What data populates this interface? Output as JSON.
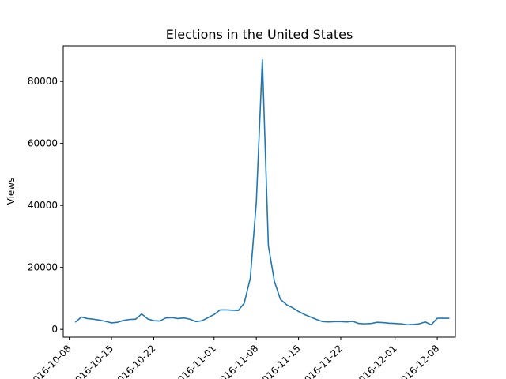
{
  "chart_data": {
    "type": "line",
    "title": "Elections in the United States",
    "xlabel": "",
    "ylabel": "Views",
    "x_type": "date",
    "xlim": [
      "2016-10-07",
      "2016-12-11"
    ],
    "ylim": [
      -2500,
      91500
    ],
    "xticks": [
      "2016-10-08",
      "2016-10-15",
      "2016-10-22",
      "2016-11-01",
      "2016-11-08",
      "2016-11-15",
      "2016-11-22",
      "2016-12-01",
      "2016-12-08"
    ],
    "yticks": [
      0,
      20000,
      40000,
      60000,
      80000
    ],
    "ytick_labels": [
      "0",
      "20000",
      "40000",
      "60000",
      "80000"
    ],
    "grid": false,
    "color": "#1f77b4",
    "series": [
      {
        "x": [
          "2016-10-09",
          "2016-10-10",
          "2016-10-11",
          "2016-10-12",
          "2016-10-13",
          "2016-10-14",
          "2016-10-15",
          "2016-10-16",
          "2016-10-17",
          "2016-10-18",
          "2016-10-19",
          "2016-10-20",
          "2016-10-21",
          "2016-10-22",
          "2016-10-23",
          "2016-10-24",
          "2016-10-25",
          "2016-10-26",
          "2016-10-27",
          "2016-10-28",
          "2016-10-29",
          "2016-10-30",
          "2016-10-31",
          "2016-11-01",
          "2016-11-02",
          "2016-11-03",
          "2016-11-04",
          "2016-11-05",
          "2016-11-06",
          "2016-11-07",
          "2016-11-08",
          "2016-11-09",
          "2016-11-10",
          "2016-11-11",
          "2016-11-12",
          "2016-11-13",
          "2016-11-14",
          "2016-11-15",
          "2016-11-16",
          "2016-11-17",
          "2016-11-18",
          "2016-11-19",
          "2016-11-20",
          "2016-11-21",
          "2016-11-22",
          "2016-11-23",
          "2016-11-24",
          "2016-11-25",
          "2016-11-26",
          "2016-11-27",
          "2016-11-28",
          "2016-11-29",
          "2016-11-30",
          "2016-12-01",
          "2016-12-02",
          "2016-12-03",
          "2016-12-04",
          "2016-12-05",
          "2016-12-06",
          "2016-12-07",
          "2016-12-08",
          "2016-12-09",
          "2016-12-10"
        ],
        "values": [
          2300,
          4000,
          3500,
          3300,
          3000,
          2600,
          2100,
          2300,
          2900,
          3200,
          3300,
          5000,
          3400,
          2800,
          2700,
          3700,
          3800,
          3500,
          3700,
          3300,
          2500,
          2800,
          3800,
          4800,
          6300,
          6300,
          6200,
          6100,
          8500,
          16500,
          41000,
          87000,
          27000,
          15500,
          9700,
          8000,
          7000,
          5800,
          4800,
          4000,
          3200,
          2500,
          2400,
          2500,
          2500,
          2400,
          2600,
          1900,
          1800,
          1900,
          2300,
          2200,
          2000,
          1900,
          1800,
          1500,
          1600,
          1800,
          2400,
          1500,
          3600,
          3600,
          3600
        ]
      }
    ]
  }
}
